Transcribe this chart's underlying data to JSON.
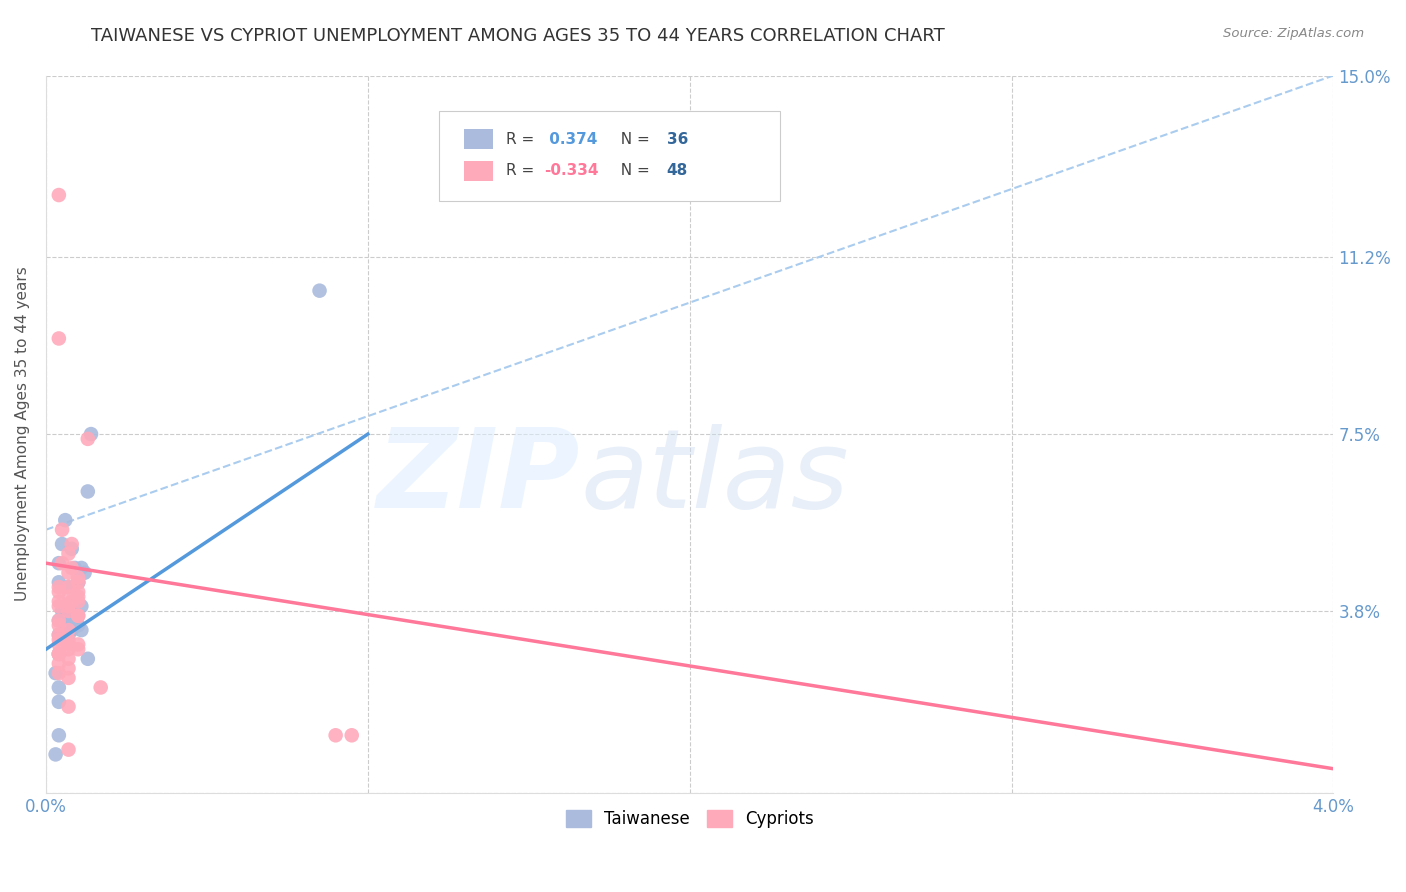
{
  "title": "TAIWANESE VS CYPRIOT UNEMPLOYMENT AMONG AGES 35 TO 44 YEARS CORRELATION CHART",
  "source": "Source: ZipAtlas.com",
  "ylabel": "Unemployment Among Ages 35 to 44 years",
  "watermark_zip": "ZIP",
  "watermark_atlas": "atlas",
  "xlim": [
    0.0,
    0.04
  ],
  "ylim": [
    0.0,
    0.15
  ],
  "xticks": [
    0.0,
    0.01,
    0.02,
    0.03,
    0.04
  ],
  "xticklabels": [
    "0.0%",
    "",
    "",
    "",
    "4.0%"
  ],
  "ytick_positions": [
    0.0,
    0.038,
    0.075,
    0.112,
    0.15
  ],
  "ytick_labels": [
    "",
    "3.8%",
    "7.5%",
    "11.2%",
    "15.0%"
  ],
  "tick_color": "#6699cc",
  "title_fontsize": 13,
  "taiwanese_color": "#aabbdd",
  "cypriot_color": "#ffaabb",
  "taiwanese_R": 0.374,
  "taiwanese_N": 36,
  "cypriot_R": -0.334,
  "cypriot_N": 48,
  "taiwanese_x": [
    0.0005,
    0.0008,
    0.0006,
    0.0004,
    0.0007,
    0.001,
    0.0009,
    0.0005,
    0.0011,
    0.0008,
    0.0013,
    0.0004,
    0.0005,
    0.0004,
    0.0003,
    0.001,
    0.0012,
    0.0007,
    0.0011,
    0.0004,
    0.0008,
    0.0007,
    0.0004,
    0.0005,
    0.0004,
    0.001,
    0.0013,
    0.0014,
    0.0004,
    0.0008,
    0.0003,
    0.0007,
    0.0085,
    0.0011,
    0.0004,
    0.0008
  ],
  "taiwanese_y": [
    0.052,
    0.051,
    0.057,
    0.048,
    0.043,
    0.044,
    0.047,
    0.038,
    0.034,
    0.035,
    0.028,
    0.036,
    0.033,
    0.029,
    0.025,
    0.044,
    0.046,
    0.031,
    0.039,
    0.012,
    0.037,
    0.036,
    0.019,
    0.036,
    0.022,
    0.035,
    0.063,
    0.075,
    0.044,
    0.034,
    0.008,
    0.033,
    0.105,
    0.047,
    0.033,
    0.037
  ],
  "cypriot_x": [
    0.0005,
    0.0008,
    0.0005,
    0.0004,
    0.0007,
    0.001,
    0.0008,
    0.0004,
    0.001,
    0.0007,
    0.0004,
    0.0004,
    0.0004,
    0.0007,
    0.001,
    0.0008,
    0.001,
    0.0004,
    0.0007,
    0.0004,
    0.0013,
    0.0007,
    0.0004,
    0.001,
    0.001,
    0.0007,
    0.0007,
    0.0004,
    0.0007,
    0.0017,
    0.001,
    0.0007,
    0.0004,
    0.0004,
    0.0004,
    0.0007,
    0.0004,
    0.009,
    0.0095,
    0.0007,
    0.001,
    0.001,
    0.0007,
    0.0007,
    0.0004,
    0.0004,
    0.0007,
    0.0007
  ],
  "cypriot_y": [
    0.055,
    0.052,
    0.048,
    0.042,
    0.046,
    0.042,
    0.047,
    0.033,
    0.044,
    0.038,
    0.035,
    0.032,
    0.029,
    0.031,
    0.041,
    0.04,
    0.03,
    0.025,
    0.018,
    0.043,
    0.074,
    0.05,
    0.036,
    0.037,
    0.04,
    0.028,
    0.034,
    0.029,
    0.039,
    0.022,
    0.045,
    0.041,
    0.125,
    0.095,
    0.04,
    0.009,
    0.039,
    0.012,
    0.012,
    0.043,
    0.037,
    0.031,
    0.026,
    0.024,
    0.031,
    0.027,
    0.03,
    0.032
  ],
  "grid_color": "#cccccc",
  "background_color": "#ffffff",
  "taiwanese_line_color": "#5599dd",
  "cypriot_line_color": "#ff7799",
  "dashed_line_color": "#aaccee",
  "legend_R_color_tw": "#5599dd",
  "legend_R_color_cy": "#ff7799",
  "legend_N_color": "#336699",
  "tw_trend_x0": 0.0,
  "tw_trend_y0": 0.03,
  "tw_trend_x1": 0.01,
  "tw_trend_y1": 0.075,
  "cy_trend_x0": 0.0,
  "cy_trend_y0": 0.048,
  "cy_trend_x1": 0.04,
  "cy_trend_y1": 0.005,
  "dash_trend_x0": 0.0,
  "dash_trend_y0": 0.055,
  "dash_trend_x1": 0.04,
  "dash_trend_y1": 0.15
}
